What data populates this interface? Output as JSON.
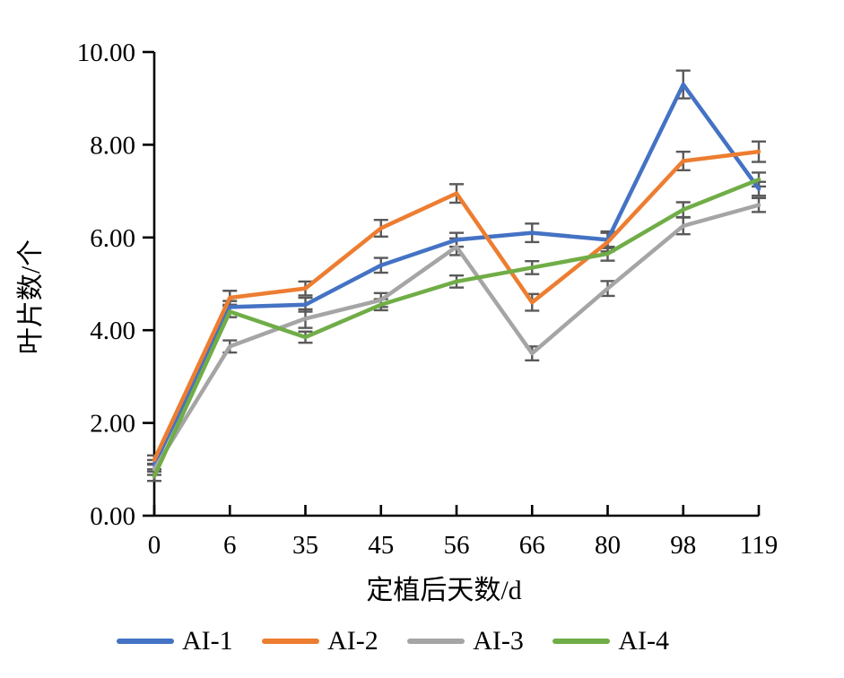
{
  "chart_data": {
    "type": "line",
    "title": "",
    "xlabel": "定植后天数/d",
    "ylabel": "叶片数/个",
    "categories": [
      "0",
      "6",
      "35",
      "45",
      "56",
      "66",
      "80",
      "98",
      "119"
    ],
    "ylim": [
      0,
      10
    ],
    "ystep": 2,
    "yticks": [
      "0.00",
      "2.00",
      "4.00",
      "6.00",
      "8.00",
      "10.00"
    ],
    "grid": false,
    "legend_position": "bottom",
    "axis_color": "#000000",
    "error_bar_color": "#595959",
    "error_bars": true,
    "series": [
      {
        "name": "AI-1",
        "color": "#4472C4",
        "values": [
          1.1,
          4.5,
          4.55,
          5.4,
          5.95,
          6.1,
          5.95,
          9.3,
          7.05
        ],
        "errors": [
          0.1,
          0.13,
          0.15,
          0.16,
          0.15,
          0.2,
          0.18,
          0.3,
          0.15
        ]
      },
      {
        "name": "AI-2",
        "color": "#ED7D31",
        "values": [
          1.2,
          4.7,
          4.9,
          6.2,
          6.95,
          4.6,
          5.9,
          7.65,
          7.85
        ],
        "errors": [
          0.1,
          0.15,
          0.15,
          0.18,
          0.2,
          0.18,
          0.2,
          0.2,
          0.22
        ]
      },
      {
        "name": "AI-3",
        "color": "#A5A5A5",
        "values": [
          1.0,
          3.65,
          4.25,
          4.65,
          5.8,
          3.5,
          4.9,
          6.25,
          6.7
        ],
        "errors": [
          0.12,
          0.13,
          0.2,
          0.15,
          0.18,
          0.15,
          0.16,
          0.18,
          0.15
        ]
      },
      {
        "name": "AI-4",
        "color": "#70AD47",
        "values": [
          0.85,
          4.4,
          3.85,
          4.55,
          5.05,
          5.35,
          5.65,
          6.6,
          7.25
        ],
        "errors": [
          0.1,
          0.12,
          0.12,
          0.12,
          0.13,
          0.14,
          0.15,
          0.16,
          0.15
        ]
      }
    ]
  }
}
